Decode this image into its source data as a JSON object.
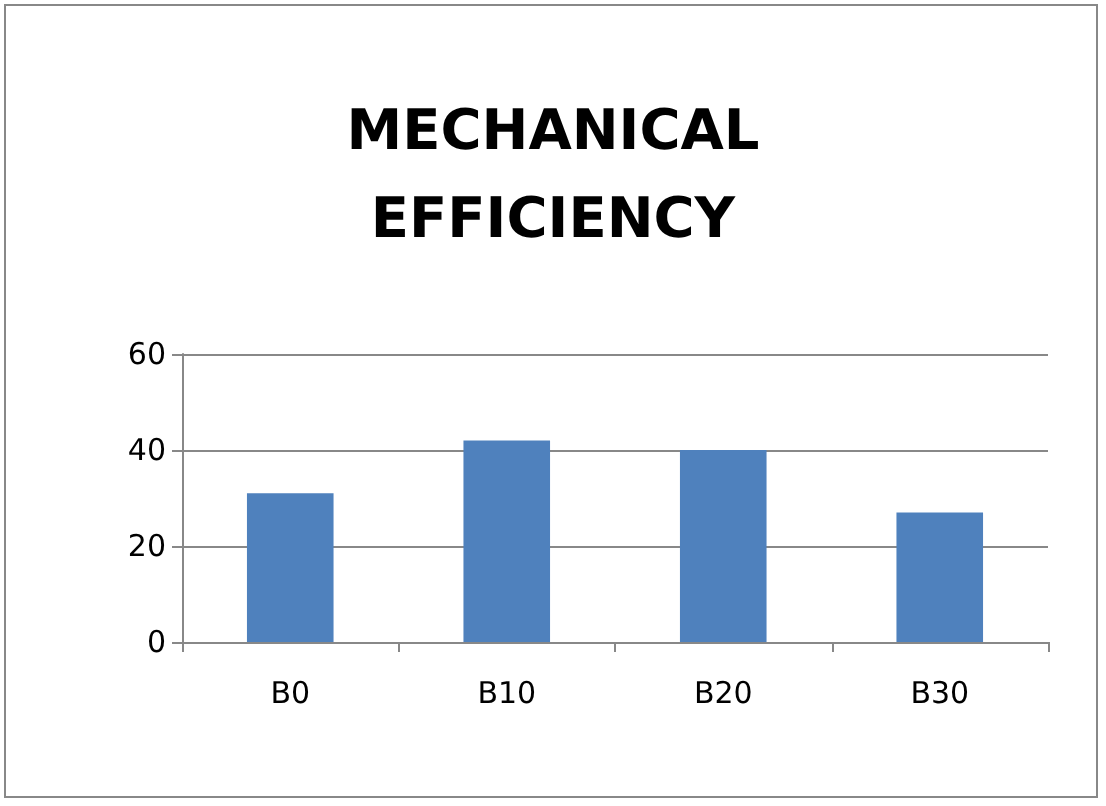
{
  "chart_data": {
    "type": "bar",
    "title": "MECHANICAL\nEFFICIENCY",
    "categories": [
      "B0",
      "B10",
      "B20",
      "B30"
    ],
    "values": [
      31,
      42,
      40,
      27
    ],
    "color": "#4f81bd",
    "ylim": [
      0,
      60
    ],
    "yticks": [
      0,
      20,
      40,
      60
    ],
    "grid": "y"
  }
}
